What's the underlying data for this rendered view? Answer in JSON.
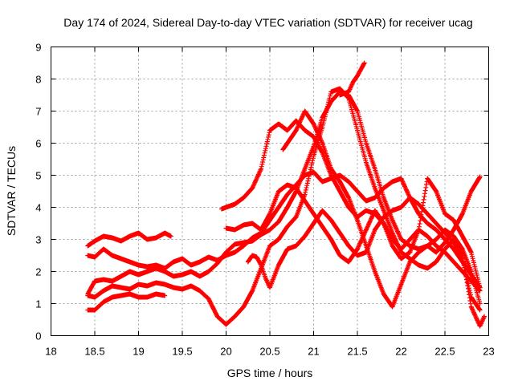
{
  "chart_data": {
    "type": "scatter",
    "title": "Day 174 of 2024, Sidereal Day-to-day VTEC variation (SDTVAR) for receiver ucag",
    "xlabel": "GPS time / hours",
    "ylabel": "SDTVAR / TECUs",
    "xlim": [
      18,
      23
    ],
    "ylim": [
      0,
      9
    ],
    "xticks": [
      "18",
      "18.5",
      "19",
      "19.5",
      "20",
      "20.5",
      "21",
      "21.5",
      "22",
      "22.5",
      "23"
    ],
    "yticks": [
      "0",
      "1",
      "2",
      "3",
      "4",
      "5",
      "6",
      "7",
      "8",
      "9"
    ],
    "grid": true,
    "marker": "+",
    "color": "#ff0000",
    "series": [
      {
        "x": [
          18.42,
          18.5,
          18.6,
          18.7,
          18.8,
          18.9,
          19.0,
          19.1,
          19.2,
          19.3,
          19.37
        ],
        "y": [
          2.8,
          2.95,
          3.1,
          3.05,
          2.95,
          3.1,
          3.2,
          3.0,
          3.05,
          3.2,
          3.1
        ]
      },
      {
        "x": [
          18.42,
          18.5,
          18.6,
          18.7,
          18.8,
          18.9,
          19.0,
          19.1,
          19.2,
          19.3,
          19.4,
          19.5,
          19.6,
          19.7,
          19.8,
          19.9,
          20.0,
          20.1,
          20.2,
          20.3,
          20.4,
          20.5,
          20.6,
          20.7,
          20.8,
          20.9,
          21.0,
          21.1,
          21.2,
          21.3,
          21.4,
          21.5,
          21.6,
          21.7,
          21.8,
          21.9,
          22.0,
          22.1,
          22.2,
          22.3,
          22.4,
          22.5,
          22.6,
          22.7,
          22.8,
          22.9
        ],
        "y": [
          2.5,
          2.45,
          2.7,
          2.5,
          2.4,
          2.3,
          2.2,
          2.15,
          2.2,
          2.1,
          2.3,
          2.4,
          2.2,
          2.3,
          2.45,
          2.35,
          2.5,
          2.6,
          2.8,
          3.05,
          3.2,
          3.6,
          4.0,
          4.4,
          4.7,
          5.0,
          5.1,
          4.8,
          4.9,
          5.0,
          4.8,
          4.5,
          4.2,
          4.3,
          4.6,
          4.8,
          4.9,
          4.3,
          3.8,
          3.5,
          3.3,
          3.0,
          2.7,
          2.3,
          1.9,
          1.5
        ]
      },
      {
        "x": [
          18.42,
          18.5,
          18.6,
          18.7,
          18.8,
          18.9,
          19.0,
          19.1,
          19.2,
          19.3,
          19.4,
          19.5,
          19.6,
          19.7,
          19.8,
          19.9,
          20.0,
          20.1,
          20.2,
          20.3,
          20.4,
          20.5,
          20.6,
          20.7,
          20.8,
          20.9,
          21.0,
          21.1,
          21.2,
          21.3,
          21.4,
          21.5,
          21.6,
          21.7,
          21.8,
          21.9,
          22.0,
          22.1,
          22.2,
          22.3,
          22.4,
          22.5,
          22.6,
          22.7,
          22.8,
          22.9
        ],
        "y": [
          1.3,
          1.7,
          1.75,
          1.7,
          1.85,
          2.0,
          1.9,
          2.0,
          2.1,
          2.0,
          1.85,
          1.9,
          2.0,
          1.85,
          2.0,
          2.25,
          2.6,
          2.85,
          2.9,
          2.95,
          3.15,
          3.3,
          3.55,
          4.0,
          4.5,
          5.2,
          5.9,
          6.8,
          7.3,
          7.6,
          7.5,
          7.0,
          6.0,
          5.2,
          4.3,
          3.6,
          3.0,
          2.8,
          2.7,
          2.8,
          3.0,
          3.3,
          3.1,
          2.7,
          2.0,
          1.0
        ]
      },
      {
        "x": [
          18.42,
          18.5,
          18.6,
          18.7,
          18.8,
          18.9,
          19.0,
          19.1,
          19.2,
          19.3,
          19.4,
          19.5,
          19.6,
          19.7,
          19.8,
          19.9,
          20.0,
          20.1,
          20.2,
          20.3,
          20.4,
          20.5,
          20.6,
          20.7,
          20.8,
          20.9,
          21.0,
          21.1,
          21.2,
          21.3,
          21.4,
          21.5,
          21.6,
          21.7,
          21.8,
          21.9,
          22.0,
          22.1,
          22.2,
          22.3,
          22.4,
          22.5,
          22.6,
          22.7,
          22.8,
          22.9
        ],
        "y": [
          1.25,
          1.2,
          1.4,
          1.55,
          1.5,
          1.45,
          1.6,
          1.55,
          1.65,
          1.6,
          1.5,
          1.45,
          1.55,
          1.4,
          1.15,
          0.6,
          0.35,
          0.6,
          0.9,
          1.4,
          2.1,
          2.8,
          3.0,
          3.4,
          3.7,
          4.4,
          5.6,
          6.5,
          7.6,
          7.7,
          7.4,
          6.4,
          5.4,
          4.6,
          3.9,
          3.2,
          2.6,
          2.4,
          2.2,
          2.1,
          2.3,
          2.7,
          3.0,
          2.4,
          1.2,
          0.8
        ]
      },
      {
        "x": [
          18.42,
          18.5,
          18.6,
          18.7,
          18.8,
          18.9,
          19.0,
          19.1,
          19.2,
          19.3
        ],
        "y": [
          0.8,
          0.8,
          1.05,
          1.2,
          1.25,
          1.3,
          1.2,
          1.2,
          1.3,
          1.25
        ]
      },
      {
        "x": [
          19.95,
          20.0,
          20.1,
          20.2,
          20.3,
          20.4,
          20.5,
          20.6,
          20.7,
          20.8,
          20.9,
          21.0,
          21.1,
          21.2,
          21.3,
          21.4,
          21.5,
          21.6,
          21.7,
          21.8,
          21.9,
          22.0,
          22.1,
          22.2,
          22.3,
          22.4,
          22.5,
          22.6,
          22.7,
          22.8,
          22.9
        ],
        "y": [
          3.95,
          4.0,
          4.1,
          4.3,
          4.6,
          5.2,
          6.4,
          6.6,
          6.4,
          6.7,
          6.4,
          6.2,
          5.7,
          5.0,
          4.5,
          4.0,
          3.7,
          3.9,
          3.8,
          3.5,
          3.0,
          2.7,
          3.0,
          3.3,
          3.1,
          2.8,
          2.6,
          2.3,
          2.0,
          1.7,
          1.4
        ]
      },
      {
        "x": [
          20.0,
          20.1,
          20.2,
          20.3,
          20.4,
          20.5,
          20.6,
          20.7,
          20.8,
          20.9,
          21.0,
          21.1,
          21.2,
          21.3,
          21.4,
          21.5,
          21.6,
          21.7,
          21.8,
          21.9,
          22.0,
          22.1,
          22.2,
          22.3,
          22.4,
          22.5,
          22.6,
          22.7,
          22.8,
          22.9
        ],
        "y": [
          3.35,
          3.3,
          3.45,
          3.5,
          3.3,
          3.8,
          4.5,
          4.7,
          4.6,
          4.2,
          3.8,
          3.4,
          3.0,
          2.5,
          2.3,
          2.7,
          3.3,
          3.9,
          3.5,
          2.8,
          2.4,
          2.6,
          3.3,
          4.9,
          4.5,
          3.8,
          3.6,
          3.1,
          2.6,
          1.5
        ]
      },
      {
        "x": [
          20.25,
          20.3,
          20.35,
          20.4,
          20.45,
          20.5,
          20.6,
          20.7,
          20.8,
          20.9,
          21.0,
          21.1,
          21.2,
          21.3,
          21.4,
          21.5,
          21.6,
          21.7,
          21.8,
          21.9,
          22.0,
          22.1,
          22.2,
          22.3,
          22.4,
          22.5,
          22.6,
          22.7,
          22.8,
          22.9,
          22.95
        ],
        "y": [
          2.3,
          2.5,
          2.45,
          2.2,
          1.8,
          1.5,
          2.2,
          2.7,
          2.8,
          3.1,
          3.5,
          3.9,
          3.6,
          3.2,
          2.8,
          2.5,
          2.6,
          3.3,
          3.7,
          3.9,
          4.0,
          4.3,
          4.1,
          3.8,
          3.5,
          3.2,
          2.9,
          2.5,
          0.9,
          0.3,
          0.6
        ]
      },
      {
        "x": [
          20.65,
          20.7,
          20.8,
          20.9,
          21.0,
          21.1,
          21.2,
          21.3,
          21.4,
          21.5,
          21.6,
          21.7,
          21.8,
          21.9,
          22.0,
          22.1,
          22.2,
          22.3,
          22.4,
          22.5,
          22.6,
          22.7,
          22.8,
          22.9
        ],
        "y": [
          5.8,
          6.0,
          6.4,
          7.0,
          6.6,
          6.0,
          5.2,
          4.8,
          4.3,
          3.6,
          2.8,
          2.0,
          1.3,
          0.9,
          1.6,
          2.3,
          2.6,
          2.8,
          2.6,
          2.9,
          3.3,
          3.8,
          4.5,
          4.95
        ]
      },
      {
        "x": [
          21.3,
          21.4,
          21.45,
          21.5,
          21.55,
          21.58
        ],
        "y": [
          7.5,
          7.6,
          7.9,
          8.1,
          8.35,
          8.5
        ]
      }
    ]
  }
}
